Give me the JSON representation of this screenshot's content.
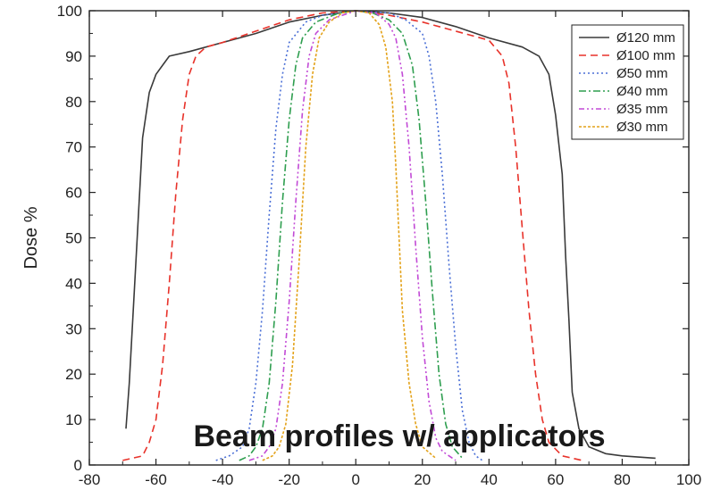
{
  "chart_data": {
    "type": "line",
    "title": "",
    "annotation": "Beam profiles w/ applicators",
    "xlabel": "",
    "ylabel": "Dose %",
    "xlim": [
      -80,
      100
    ],
    "ylim": [
      0,
      100
    ],
    "xticks": [
      -80,
      -60,
      -40,
      -20,
      0,
      20,
      40,
      60,
      80,
      100
    ],
    "yticks": [
      0,
      10,
      20,
      30,
      40,
      50,
      60,
      70,
      80,
      90,
      100
    ],
    "grid": false,
    "legend_position": "top-right",
    "series": [
      {
        "name": "Ø120 mm",
        "color": "#3a3a3a",
        "dash": "solid",
        "points": [
          [
            -69,
            8
          ],
          [
            -68,
            18
          ],
          [
            -66,
            45
          ],
          [
            -64,
            72
          ],
          [
            -62,
            82
          ],
          [
            -60,
            86
          ],
          [
            -58,
            88
          ],
          [
            -56,
            90
          ],
          [
            -50,
            91
          ],
          [
            -40,
            93
          ],
          [
            -30,
            95
          ],
          [
            -20,
            97.5
          ],
          [
            -10,
            99
          ],
          [
            0,
            100
          ],
          [
            10,
            99.5
          ],
          [
            20,
            98.5
          ],
          [
            30,
            96.5
          ],
          [
            40,
            94
          ],
          [
            50,
            92
          ],
          [
            55,
            90
          ],
          [
            58,
            86
          ],
          [
            60,
            77
          ],
          [
            62,
            64
          ],
          [
            63,
            46
          ],
          [
            64,
            32
          ],
          [
            65,
            16
          ],
          [
            67,
            8
          ],
          [
            70,
            4
          ],
          [
            75,
            2.5
          ],
          [
            80,
            2
          ],
          [
            90,
            1.5
          ]
        ]
      },
      {
        "name": "Ø100 mm",
        "color": "#e8322a",
        "dash": "8,5",
        "points": [
          [
            -70,
            1
          ],
          [
            -64,
            2
          ],
          [
            -62,
            5
          ],
          [
            -60,
            10
          ],
          [
            -58,
            22
          ],
          [
            -56,
            40
          ],
          [
            -54,
            60
          ],
          [
            -52,
            76
          ],
          [
            -50,
            86
          ],
          [
            -48,
            90
          ],
          [
            -45,
            92
          ],
          [
            -40,
            93
          ],
          [
            -30,
            95.5
          ],
          [
            -20,
            98
          ],
          [
            -10,
            99.5
          ],
          [
            0,
            100
          ],
          [
            10,
            99
          ],
          [
            20,
            97.5
          ],
          [
            30,
            95.5
          ],
          [
            40,
            93.5
          ],
          [
            44,
            90
          ],
          [
            46,
            84
          ],
          [
            48,
            70
          ],
          [
            50,
            52
          ],
          [
            52,
            34
          ],
          [
            54,
            20
          ],
          [
            56,
            10
          ],
          [
            58,
            5
          ],
          [
            62,
            2
          ],
          [
            68,
            1
          ]
        ]
      },
      {
        "name": "Ø50 mm",
        "color": "#4a6fd6",
        "dash": "2,3",
        "points": [
          [
            -42,
            1
          ],
          [
            -38,
            2
          ],
          [
            -34,
            4
          ],
          [
            -32,
            8
          ],
          [
            -30,
            18
          ],
          [
            -28,
            34
          ],
          [
            -26,
            55
          ],
          [
            -24,
            74
          ],
          [
            -22,
            86
          ],
          [
            -20,
            93
          ],
          [
            -15,
            97.5
          ],
          [
            -10,
            99
          ],
          [
            0,
            100
          ],
          [
            10,
            99.5
          ],
          [
            15,
            98
          ],
          [
            20,
            95
          ],
          [
            22,
            90
          ],
          [
            24,
            80
          ],
          [
            26,
            64
          ],
          [
            28,
            44
          ],
          [
            30,
            26
          ],
          [
            32,
            12
          ],
          [
            34,
            5
          ],
          [
            36,
            2
          ],
          [
            38,
            1
          ]
        ]
      },
      {
        "name": "Ø40 mm",
        "color": "#2e9e4f",
        "dash": "8,3,2,3",
        "points": [
          [
            -35,
            1
          ],
          [
            -32,
            2
          ],
          [
            -30,
            4
          ],
          [
            -28,
            8
          ],
          [
            -26,
            18
          ],
          [
            -24,
            36
          ],
          [
            -22,
            58
          ],
          [
            -20,
            76
          ],
          [
            -18,
            88
          ],
          [
            -16,
            94
          ],
          [
            -12,
            97.5
          ],
          [
            -5,
            99.5
          ],
          [
            0,
            100
          ],
          [
            5,
            99.5
          ],
          [
            10,
            98
          ],
          [
            14,
            95
          ],
          [
            17,
            88
          ],
          [
            19,
            76
          ],
          [
            21,
            58
          ],
          [
            23,
            38
          ],
          [
            25,
            20
          ],
          [
            27,
            9
          ],
          [
            29,
            4
          ],
          [
            32,
            1.5
          ]
        ]
      },
      {
        "name": "Ø35 mm",
        "color": "#c24ad6",
        "dash": "6,3,2,3,2,3",
        "points": [
          [
            -32,
            1
          ],
          [
            -28,
            2
          ],
          [
            -26,
            4
          ],
          [
            -24,
            8
          ],
          [
            -22,
            18
          ],
          [
            -20,
            36
          ],
          [
            -18,
            58
          ],
          [
            -16,
            78
          ],
          [
            -14,
            90
          ],
          [
            -12,
            95
          ],
          [
            -8,
            98
          ],
          [
            0,
            100
          ],
          [
            6,
            99.5
          ],
          [
            10,
            97
          ],
          [
            12,
            94
          ],
          [
            14,
            86
          ],
          [
            16,
            70
          ],
          [
            18,
            48
          ],
          [
            20,
            28
          ],
          [
            22,
            14
          ],
          [
            24,
            6
          ],
          [
            26,
            3
          ],
          [
            30,
            1
          ]
        ]
      },
      {
        "name": "Ø30 mm",
        "color": "#e3a21a",
        "dash": "3,2",
        "points": [
          [
            -28,
            1
          ],
          [
            -25,
            2
          ],
          [
            -23,
            4
          ],
          [
            -21,
            9
          ],
          [
            -19,
            22
          ],
          [
            -17,
            45
          ],
          [
            -15,
            70
          ],
          [
            -13,
            86
          ],
          [
            -11,
            94
          ],
          [
            -8,
            97.5
          ],
          [
            -4,
            99.5
          ],
          [
            0,
            100
          ],
          [
            4,
            99.5
          ],
          [
            7,
            97
          ],
          [
            9,
            92
          ],
          [
            11,
            80
          ],
          [
            12,
            66
          ],
          [
            13,
            50
          ],
          [
            14,
            34
          ],
          [
            16,
            18
          ],
          [
            18,
            9
          ],
          [
            20,
            4
          ],
          [
            24,
            1.5
          ]
        ]
      }
    ]
  }
}
